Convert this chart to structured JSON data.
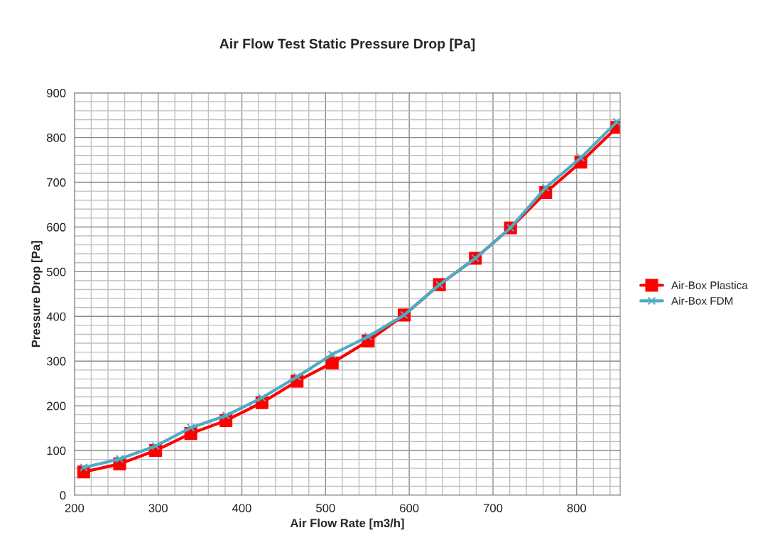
{
  "chart_data": {
    "type": "line",
    "title": "Air Flow Test Static Pressure Drop [Pa]",
    "xlabel": "Air Flow Rate [m3/h]",
    "ylabel": "Pressure Drop [Pa]",
    "x": [
      211,
      254,
      297,
      339,
      381,
      424,
      466,
      508,
      551,
      594,
      636,
      679,
      721,
      763,
      805,
      848
    ],
    "series": [
      {
        "name": "Air-Box Plastica",
        "color": "#ff0000",
        "marker": "square",
        "values": [
          52,
          70,
          100,
          138,
          167,
          207,
          255,
          296,
          345,
          403,
          471,
          530,
          598,
          677,
          745,
          823
        ]
      },
      {
        "name": "Air-Box FDM",
        "color": "#4bacc6",
        "marker": "cross",
        "values": [
          62,
          81,
          110,
          151,
          178,
          218,
          265,
          315,
          355,
          403,
          471,
          530,
          598,
          688,
          755,
          835
        ]
      }
    ],
    "xlim": [
      200,
      852
    ],
    "xticks": [
      200,
      300,
      400,
      500,
      600,
      700,
      800
    ],
    "ylim": [
      0,
      900
    ],
    "yticks": [
      0,
      100,
      200,
      300,
      400,
      500,
      600,
      700,
      800,
      900
    ],
    "grid": true,
    "legend": "right",
    "line_style": "solid"
  }
}
